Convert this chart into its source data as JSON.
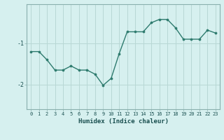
{
  "x": [
    0,
    1,
    2,
    3,
    4,
    5,
    6,
    7,
    8,
    9,
    10,
    11,
    12,
    13,
    14,
    15,
    16,
    17,
    18,
    19,
    20,
    21,
    22,
    23
  ],
  "y": [
    -1.2,
    -1.2,
    -1.4,
    -1.65,
    -1.65,
    -1.55,
    -1.65,
    -1.65,
    -1.75,
    -2.02,
    -1.85,
    -1.25,
    -0.72,
    -0.72,
    -0.72,
    -0.5,
    -0.42,
    -0.42,
    -0.62,
    -0.9,
    -0.9,
    -0.9,
    -0.68,
    -0.75
  ],
  "line_color": "#2e7b6e",
  "marker": "o",
  "marker_size": 2.2,
  "bg_color": "#d6f0ef",
  "grid_color": "#b8d8d5",
  "xlabel": "Humidex (Indice chaleur)",
  "ylim": [
    -2.6,
    -0.05
  ],
  "xlim": [
    -0.5,
    23.5
  ],
  "yticks": [
    -2,
    -1
  ],
  "xticks": [
    0,
    1,
    2,
    3,
    4,
    5,
    6,
    7,
    8,
    9,
    10,
    11,
    12,
    13,
    14,
    15,
    16,
    17,
    18,
    19,
    20,
    21,
    22,
    23
  ],
  "line_width": 1.0,
  "tick_label_color": "#1a5050",
  "xlabel_color": "#1a5050",
  "tick_fontsize": 5.0,
  "xlabel_fontsize": 6.5
}
